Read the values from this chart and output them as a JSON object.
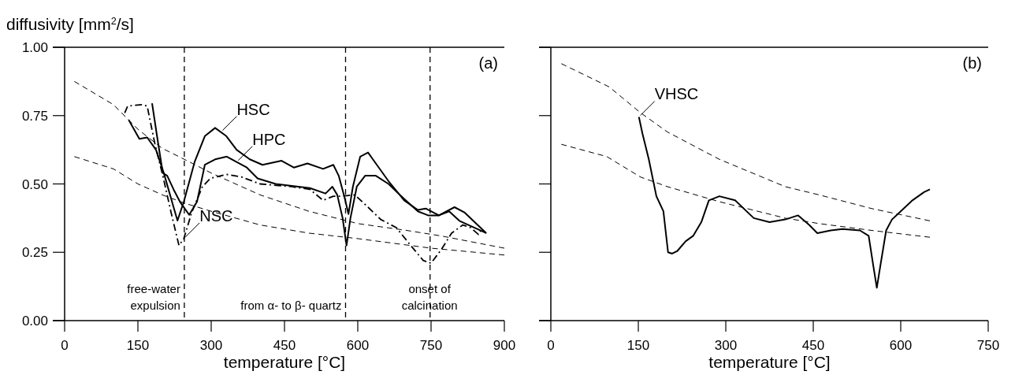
{
  "chart_data": [
    {
      "type": "line",
      "ylabel": "diffusivity [mm$^{2}$/s]",
      "xlabel": "temperature [°C]",
      "xlim": [
        0,
        900
      ],
      "xticks": [
        0,
        150,
        300,
        450,
        600,
        750,
        900
      ],
      "ylim": [
        0,
        1
      ],
      "yticks": [
        {
          "value": 0,
          "label": "0.00"
        },
        {
          "value": 0.25,
          "label": "0.25"
        },
        {
          "value": 0.5,
          "label": "0.50"
        },
        {
          "value": 0.75,
          "label": "0.75"
        },
        {
          "value": 1,
          "label": "1.00"
        }
      ],
      "grid": false,
      "series": [
        {
          "color": "#000000",
          "line_style": "solid",
          "x": [
            131,
            153,
            169,
            187,
            203,
            223,
            231,
            244,
            266,
            287,
            308,
            331,
            352,
            379,
            405,
            444,
            469,
            497,
            529,
            550,
            561,
            573,
            581,
            590,
            605,
            621,
            637,
            663,
            695,
            723,
            739,
            766,
            798,
            819,
            863
          ],
          "values": [
            0.735,
            0.665,
            0.67,
            0.625,
            0.54,
            0.415,
            0.366,
            0.435,
            0.58,
            0.675,
            0.705,
            0.675,
            0.625,
            0.59,
            0.57,
            0.585,
            0.56,
            0.575,
            0.555,
            0.57,
            0.53,
            0.45,
            0.39,
            0.49,
            0.6,
            0.615,
            0.575,
            0.51,
            0.44,
            0.405,
            0.41,
            0.385,
            0.415,
            0.395,
            0.32
          ]
        },
        {
          "color": "#000000",
          "line_style": "solid",
          "x": [
            179,
            190,
            201,
            210,
            223,
            236,
            255,
            271,
            287,
            308,
            332,
            352,
            373,
            395,
            432,
            502,
            534,
            548,
            558,
            569,
            577,
            585,
            598,
            615,
            637,
            663,
            695,
            723,
            744,
            766,
            787,
            808,
            863
          ],
          "values": [
            0.795,
            0.665,
            0.54,
            0.53,
            0.48,
            0.435,
            0.387,
            0.435,
            0.57,
            0.59,
            0.6,
            0.58,
            0.56,
            0.52,
            0.5,
            0.485,
            0.465,
            0.49,
            0.46,
            0.375,
            0.275,
            0.375,
            0.49,
            0.53,
            0.53,
            0.5,
            0.445,
            0.4,
            0.385,
            0.385,
            0.4,
            0.365,
            0.32
          ]
        },
        {
          "color": "#000000",
          "line_style": "dashdot",
          "x": [
            123,
            129,
            158,
            169,
            174,
            185,
            201,
            218,
            234,
            244,
            260,
            282,
            298,
            331,
            363,
            400,
            465,
            502,
            529,
            550,
            566,
            594,
            621,
            647,
            679,
            706,
            734,
            750,
            771,
            792,
            815,
            831,
            847,
            852
          ],
          "values": [
            0.76,
            0.785,
            0.79,
            0.785,
            0.74,
            0.645,
            0.53,
            0.395,
            0.275,
            0.3,
            0.395,
            0.49,
            0.52,
            0.535,
            0.525,
            0.5,
            0.49,
            0.48,
            0.44,
            0.455,
            0.455,
            0.46,
            0.415,
            0.37,
            0.34,
            0.28,
            0.22,
            0.21,
            0.26,
            0.32,
            0.35,
            0.34,
            0.315,
            0.33
          ]
        },
        {
          "color": "#000000",
          "line_style": "dashed",
          "x": [
            20,
            100,
            150,
            200,
            245,
            300,
            350,
            400,
            500,
            600,
            700,
            770,
            900
          ],
          "values": [
            0.875,
            0.79,
            0.7,
            0.63,
            0.59,
            0.54,
            0.5,
            0.46,
            0.4,
            0.355,
            0.33,
            0.31,
            0.265
          ]
        },
        {
          "color": "#000000",
          "line_style": "dashed",
          "x": [
            20,
            100,
            150,
            200,
            245,
            300,
            400,
            500,
            600,
            750,
            900
          ],
          "values": [
            0.6,
            0.555,
            0.5,
            0.46,
            0.43,
            0.4,
            0.35,
            0.32,
            0.3,
            0.265,
            0.24
          ]
        }
      ],
      "ref_lines": [
        {
          "axis": "x",
          "value": 245,
          "line_style": "dashed",
          "label": "free-water\nexpulsion"
        },
        {
          "axis": "x",
          "value": 575,
          "line_style": "dashed",
          "label": "from α- to β- quartz"
        },
        {
          "axis": "x",
          "value": 748,
          "line_style": "dashed"
        }
      ],
      "annotations": [
        "(a)",
        {
          "text": "HSC",
          "x": 320,
          "y": 0.69
        },
        {
          "text": "HPC",
          "x": 352,
          "y": 0.58
        },
        {
          "text": "NSC",
          "x": 244,
          "y": 0.3
        },
        {
          "text": "onset of\ncalcination",
          "x": 747,
          "y": 0.09
        }
      ]
    },
    {
      "type": "line",
      "xlabel": "temperature [°C]",
      "xlim": [
        0,
        750
      ],
      "xticks": [
        0,
        150,
        300,
        450,
        600,
        750
      ],
      "ylim": [
        0,
        1
      ],
      "yticks": [
        0,
        0.25,
        0.5,
        0.75,
        1
      ],
      "tick_labels": "x",
      "grid": false,
      "series": [
        {
          "color": "#000000",
          "line_style": "solid",
          "x": [
            151,
            157,
            168,
            181,
            193,
            201,
            208,
            217,
            231,
            244,
            258,
            271,
            289,
            316,
            348,
            375,
            402,
            424,
            443,
            457,
            480,
            500,
            530,
            545,
            553,
            559,
            565,
            575,
            585,
            600,
            620,
            640,
            650
          ],
          "values": [
            0.745,
            0.685,
            0.59,
            0.455,
            0.4,
            0.25,
            0.245,
            0.255,
            0.29,
            0.31,
            0.36,
            0.44,
            0.455,
            0.44,
            0.375,
            0.36,
            0.37,
            0.385,
            0.35,
            0.32,
            0.33,
            0.335,
            0.33,
            0.31,
            0.2,
            0.12,
            0.2,
            0.33,
            0.37,
            0.4,
            0.44,
            0.47,
            0.48
          ]
        },
        {
          "color": "#000000",
          "line_style": "dashed",
          "x": [
            18,
            100,
            154,
            200,
            289,
            402,
            460,
            550,
            650
          ],
          "values": [
            0.94,
            0.855,
            0.76,
            0.69,
            0.59,
            0.49,
            0.46,
            0.41,
            0.365
          ]
        },
        {
          "color": "#000000",
          "line_style": "dashed",
          "x": [
            18,
            96,
            154,
            200,
            289,
            402,
            460,
            550,
            650
          ],
          "values": [
            0.645,
            0.6,
            0.525,
            0.49,
            0.435,
            0.375,
            0.355,
            0.33,
            0.305
          ]
        }
      ],
      "annotations": [
        "(b)",
        {
          "text": "VHSC",
          "x": 151,
          "y": 0.745
        }
      ]
    }
  ]
}
